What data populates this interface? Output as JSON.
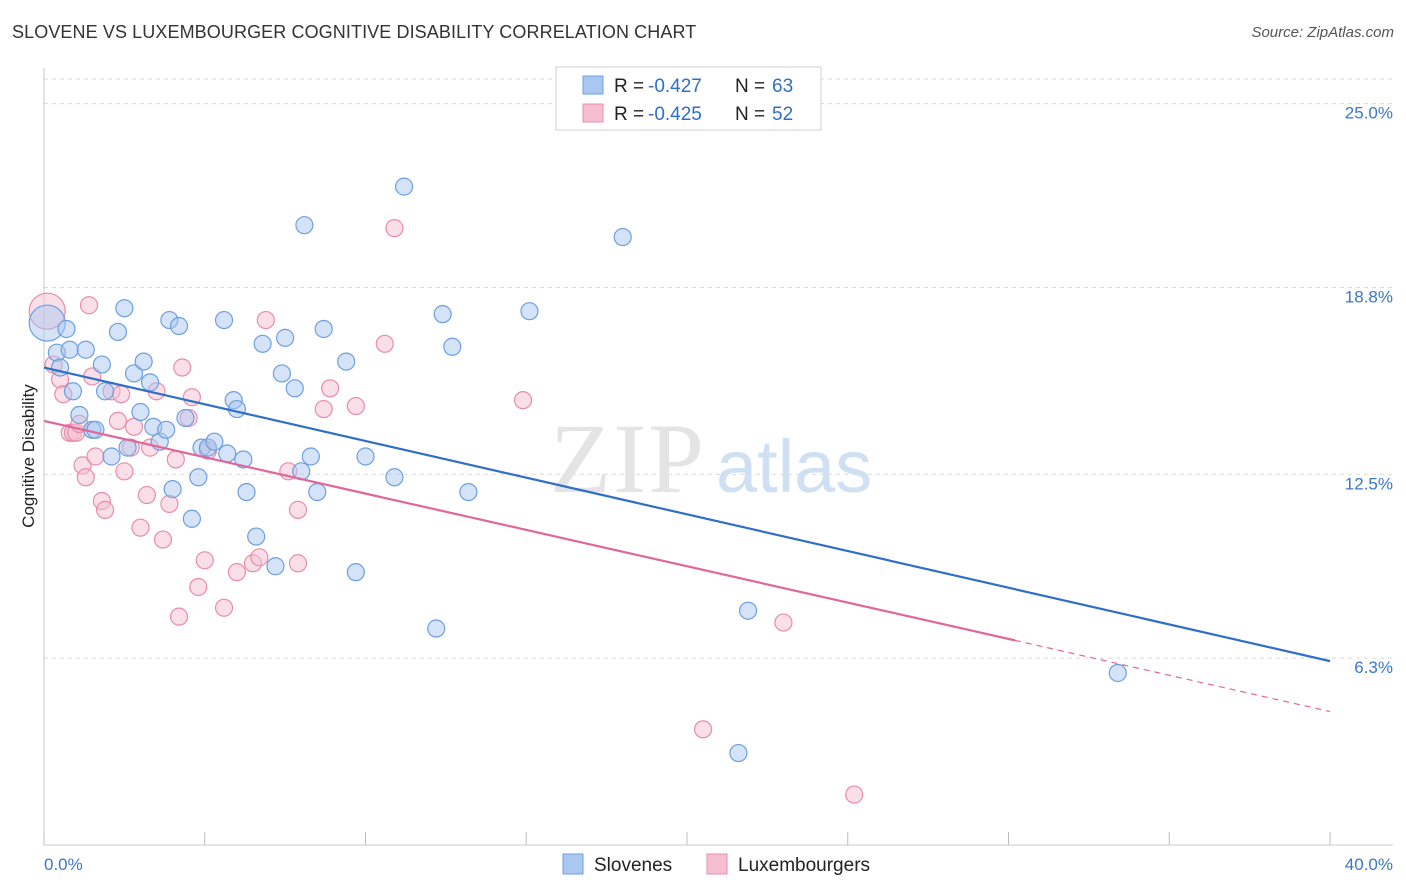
{
  "title": "SLOVENE VS LUXEMBOURGER COGNITIVE DISABILITY CORRELATION CHART",
  "source": "Source: ZipAtlas.com",
  "watermark": {
    "zip": "ZIP",
    "atlas": "atlas"
  },
  "colors": {
    "slovenes_fill": "#a9c8f0",
    "slovenes_stroke": "#6d9fe0",
    "slovenes_line": "#2f6fc8",
    "lux_fill": "#f6bfd1",
    "lux_stroke": "#e98cab",
    "lux_line": "#e0679a",
    "grid": "#d9d9d9",
    "tick_label": "#3a78c8"
  },
  "legend": {
    "r_label": "R =",
    "n_label": "N =",
    "rows": [
      {
        "r": "-0.427",
        "n": "63"
      },
      {
        "r": "-0.425",
        "n": "52"
      }
    ]
  },
  "chart_data": {
    "type": "scatter",
    "title": "SLOVENE VS LUXEMBOURGER COGNITIVE DISABILITY CORRELATION CHART",
    "xlabel": "",
    "ylabel": "Cognitive Disability",
    "xlim": [
      0,
      40
    ],
    "ylim": [
      0,
      26.2
    ],
    "x_tick_labels": [
      "0.0%",
      "40.0%"
    ],
    "y_ticks": [
      6.3,
      12.5,
      18.8,
      25.0
    ],
    "y_tick_labels": [
      "6.3%",
      "12.5%",
      "18.8%",
      "25.0%"
    ],
    "grid": true,
    "legend_position": "bottom-center",
    "series": [
      {
        "name": "Slovenes",
        "r": -0.427,
        "n": 63,
        "trend": {
          "x": [
            0,
            40
          ],
          "y": [
            16.1,
            6.2
          ]
        },
        "points": [
          [
            0.1,
            17.6
          ],
          [
            0.4,
            16.6
          ],
          [
            0.5,
            16.1
          ],
          [
            0.7,
            17.4
          ],
          [
            0.8,
            16.7
          ],
          [
            0.9,
            15.3
          ],
          [
            1.1,
            14.5
          ],
          [
            1.3,
            16.7
          ],
          [
            1.5,
            14.0
          ],
          [
            1.6,
            14.0
          ],
          [
            1.8,
            16.2
          ],
          [
            1.9,
            15.3
          ],
          [
            2.1,
            13.1
          ],
          [
            2.3,
            17.3
          ],
          [
            2.5,
            18.1
          ],
          [
            2.6,
            13.4
          ],
          [
            2.8,
            15.9
          ],
          [
            3.0,
            14.6
          ],
          [
            3.1,
            16.3
          ],
          [
            3.3,
            15.6
          ],
          [
            3.4,
            14.1
          ],
          [
            3.6,
            13.6
          ],
          [
            3.8,
            14.0
          ],
          [
            3.9,
            17.7
          ],
          [
            4.0,
            12.0
          ],
          [
            4.2,
            17.5
          ],
          [
            4.4,
            14.4
          ],
          [
            4.6,
            11.0
          ],
          [
            4.8,
            12.4
          ],
          [
            4.9,
            13.4
          ],
          [
            5.1,
            13.4
          ],
          [
            5.3,
            13.6
          ],
          [
            5.6,
            17.7
          ],
          [
            5.7,
            13.2
          ],
          [
            5.9,
            15.0
          ],
          [
            6.0,
            14.7
          ],
          [
            6.2,
            13.0
          ],
          [
            6.3,
            11.9
          ],
          [
            6.6,
            10.4
          ],
          [
            6.8,
            16.9
          ],
          [
            7.2,
            9.4
          ],
          [
            7.4,
            15.9
          ],
          [
            7.5,
            17.1
          ],
          [
            7.8,
            15.4
          ],
          [
            8.0,
            12.6
          ],
          [
            8.1,
            20.9
          ],
          [
            8.3,
            13.1
          ],
          [
            8.5,
            11.9
          ],
          [
            8.7,
            17.4
          ],
          [
            9.4,
            16.3
          ],
          [
            9.7,
            9.2
          ],
          [
            10.0,
            13.1
          ],
          [
            10.9,
            12.4
          ],
          [
            11.2,
            22.2
          ],
          [
            12.2,
            7.3
          ],
          [
            12.4,
            17.9
          ],
          [
            12.7,
            16.8
          ],
          [
            13.2,
            11.9
          ],
          [
            15.1,
            18.0
          ],
          [
            18.0,
            20.5
          ],
          [
            21.9,
            7.9
          ],
          [
            33.4,
            5.8
          ],
          [
            21.6,
            3.1
          ]
        ]
      },
      {
        "name": "Luxembourgers",
        "r": -0.425,
        "n": 52,
        "trend": {
          "x": [
            0,
            30.2,
            40
          ],
          "y": [
            14.3,
            6.9,
            4.5
          ]
        },
        "points": [
          [
            0.1,
            18.0
          ],
          [
            0.3,
            16.2
          ],
          [
            0.5,
            15.7
          ],
          [
            0.6,
            15.2
          ],
          [
            0.8,
            13.9
          ],
          [
            0.9,
            13.9
          ],
          [
            1.0,
            13.9
          ],
          [
            1.1,
            14.2
          ],
          [
            1.2,
            12.8
          ],
          [
            1.3,
            12.4
          ],
          [
            1.4,
            18.2
          ],
          [
            1.5,
            15.8
          ],
          [
            1.6,
            13.1
          ],
          [
            1.8,
            11.6
          ],
          [
            1.9,
            11.3
          ],
          [
            2.1,
            15.3
          ],
          [
            2.3,
            14.3
          ],
          [
            2.4,
            15.2
          ],
          [
            2.5,
            12.6
          ],
          [
            2.7,
            13.4
          ],
          [
            2.8,
            14.1
          ],
          [
            3.0,
            10.7
          ],
          [
            3.2,
            11.8
          ],
          [
            3.3,
            13.4
          ],
          [
            3.5,
            15.3
          ],
          [
            3.7,
            10.3
          ],
          [
            3.9,
            11.5
          ],
          [
            4.1,
            13.0
          ],
          [
            4.2,
            7.7
          ],
          [
            4.3,
            16.1
          ],
          [
            4.5,
            14.4
          ],
          [
            4.6,
            15.1
          ],
          [
            4.8,
            8.7
          ],
          [
            5.0,
            9.6
          ],
          [
            5.1,
            13.3
          ],
          [
            5.6,
            8.0
          ],
          [
            6.0,
            9.2
          ],
          [
            6.5,
            9.5
          ],
          [
            6.7,
            9.7
          ],
          [
            6.9,
            17.7
          ],
          [
            7.6,
            12.6
          ],
          [
            7.9,
            11.3
          ],
          [
            7.9,
            9.5
          ],
          [
            8.7,
            14.7
          ],
          [
            8.9,
            15.4
          ],
          [
            9.7,
            14.8
          ],
          [
            10.6,
            16.9
          ],
          [
            10.9,
            20.8
          ],
          [
            14.9,
            15.0
          ],
          [
            23.0,
            7.5
          ],
          [
            20.5,
            3.9
          ],
          [
            25.2,
            1.7
          ]
        ]
      }
    ]
  }
}
